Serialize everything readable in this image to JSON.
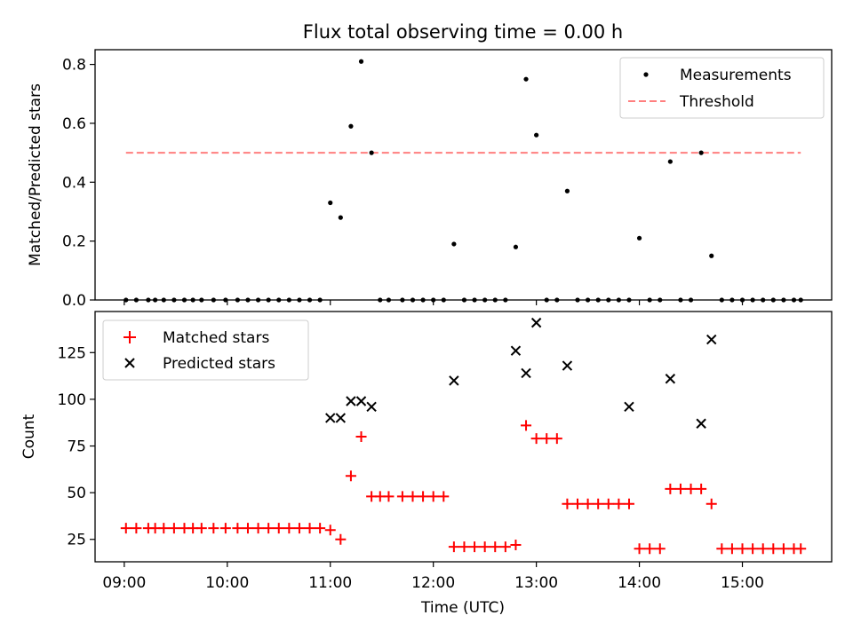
{
  "chart_data": [
    {
      "type": "scatter",
      "title": "Flux total observing time = 0.00 h",
      "xlabel": "",
      "ylabel": "Matched/Predicted stars",
      "ylim": [
        0,
        0.85
      ],
      "yticks": [
        0.0,
        0.2,
        0.4,
        0.6,
        0.8
      ],
      "ytick_labels": [
        "0.0",
        "0.2",
        "0.4",
        "0.6",
        "0.8"
      ],
      "legend_position": "top-right",
      "series": [
        {
          "name": "Measurements",
          "color": "#000000",
          "marker": "dot",
          "x": [
            "09:01",
            "09:07",
            "09:14",
            "09:18",
            "09:23",
            "09:29",
            "09:35",
            "09:40",
            "09:45",
            "09:52",
            "09:59",
            "10:06",
            "10:12",
            "10:18",
            "10:24",
            "10:30",
            "10:36",
            "10:42",
            "10:48",
            "10:54",
            "11:00",
            "11:06",
            "11:12",
            "11:18",
            "11:24",
            "11:29",
            "11:34",
            "11:42",
            "11:48",
            "11:54",
            "12:00",
            "12:06",
            "12:12",
            "12:18",
            "12:24",
            "12:30",
            "12:36",
            "12:42",
            "12:48",
            "12:54",
            "13:00",
            "13:06",
            "13:12",
            "13:18",
            "13:24",
            "13:30",
            "13:36",
            "13:42",
            "13:48",
            "13:54",
            "14:00",
            "14:06",
            "14:12",
            "14:18",
            "14:24",
            "14:30",
            "14:36",
            "14:42",
            "14:48",
            "14:54",
            "15:00",
            "15:06",
            "15:12",
            "15:18",
            "15:24",
            "15:30",
            "15:34"
          ],
          "y": [
            0,
            0,
            0,
            0,
            0,
            0,
            0,
            0,
            0,
            0,
            0,
            0,
            0,
            0,
            0,
            0,
            0,
            0,
            0,
            0,
            0.33,
            0.28,
            0.59,
            0.81,
            0.5,
            0,
            0,
            0,
            0,
            0,
            0,
            0,
            0.19,
            0,
            0,
            0,
            0,
            0,
            0.18,
            0.75,
            0.56,
            0,
            0,
            0.37,
            0,
            0,
            0,
            0,
            0,
            0,
            0.21,
            0,
            0,
            0.47,
            0,
            0,
            0.5,
            0.15,
            0,
            0,
            0,
            0,
            0,
            0,
            0,
            0,
            0
          ]
        },
        {
          "name": "Threshold",
          "color": "#ff7f7f",
          "style": "dashed",
          "x": [
            "09:01",
            "15:34"
          ],
          "y": [
            0.5,
            0.5
          ]
        }
      ]
    },
    {
      "type": "scatter",
      "title": "",
      "xlabel": "Time (UTC)",
      "ylabel": "Count",
      "ylim": [
        13,
        147
      ],
      "yticks": [
        25,
        50,
        75,
        100,
        125
      ],
      "ytick_labels": [
        "25",
        "50",
        "75",
        "100",
        "125"
      ],
      "legend_position": "top-left",
      "series": [
        {
          "name": "Matched stars",
          "color": "#ff0000",
          "marker": "plus",
          "x": [
            "09:01",
            "09:07",
            "09:14",
            "09:18",
            "09:23",
            "09:29",
            "09:35",
            "09:40",
            "09:45",
            "09:52",
            "09:59",
            "10:06",
            "10:12",
            "10:18",
            "10:24",
            "10:30",
            "10:36",
            "10:42",
            "10:48",
            "10:54",
            "11:00",
            "11:06",
            "11:12",
            "11:18",
            "11:24",
            "11:29",
            "11:34",
            "11:42",
            "11:48",
            "11:54",
            "12:00",
            "12:06",
            "12:12",
            "12:18",
            "12:24",
            "12:30",
            "12:36",
            "12:42",
            "12:48",
            "12:54",
            "13:00",
            "13:06",
            "13:12",
            "13:18",
            "13:24",
            "13:30",
            "13:36",
            "13:42",
            "13:48",
            "13:54",
            "14:00",
            "14:06",
            "14:12",
            "14:18",
            "14:24",
            "14:30",
            "14:36",
            "14:42",
            "14:48",
            "14:54",
            "15:00",
            "15:06",
            "15:12",
            "15:18",
            "15:24",
            "15:30",
            "15:34"
          ],
          "y": [
            31,
            31,
            31,
            31,
            31,
            31,
            31,
            31,
            31,
            31,
            31,
            31,
            31,
            31,
            31,
            31,
            31,
            31,
            31,
            31,
            30,
            25,
            59,
            80,
            48,
            48,
            48,
            48,
            48,
            48,
            48,
            48,
            21,
            21,
            21,
            21,
            21,
            21,
            22,
            86,
            79,
            79,
            79,
            44,
            44,
            44,
            44,
            44,
            44,
            44,
            20,
            20,
            20,
            52,
            52,
            52,
            52,
            44,
            20,
            20,
            20,
            20,
            20,
            20,
            20,
            20,
            20
          ]
        },
        {
          "name": "Predicted stars",
          "color": "#000000",
          "marker": "x",
          "x": [
            "11:00",
            "11:06",
            "11:12",
            "11:18",
            "11:24",
            "12:12",
            "12:48",
            "12:54",
            "13:00",
            "13:18",
            "13:54",
            "14:18",
            "14:36",
            "14:42"
          ],
          "y": [
            90,
            90,
            99,
            99,
            96,
            110,
            126,
            114,
            141,
            118,
            96,
            111,
            87,
            132
          ]
        }
      ],
      "xticks": [
        "09:00",
        "10:00",
        "11:00",
        "12:00",
        "13:00",
        "14:00",
        "15:00"
      ],
      "xtick_labels": [
        "09:00",
        "10:00",
        "11:00",
        "12:00",
        "13:00",
        "14:00",
        "15:00"
      ],
      "xlim": [
        "08:43",
        "15:52"
      ]
    }
  ]
}
